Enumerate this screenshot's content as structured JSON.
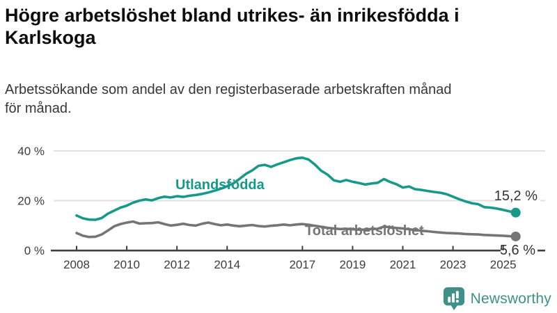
{
  "header": {
    "title_lines": [
      "Högre arbetslöshet bland utrikes- än inrikesfödda i",
      "Karlskoga"
    ],
    "subtitle_lines": [
      "Arbetssökande som andel av den registerbaserade arbetskraften månad",
      "för månad."
    ]
  },
  "branding": {
    "logo_text": "Newsworthy",
    "logo_color": "#3d918a",
    "logo_icon": "bar-chart-speech-bubble-icon"
  },
  "colors": {
    "foreign_born_line": "#17998a",
    "total_line": "#757575",
    "gridline": "#e0e0e0",
    "axis": "#3f3f3f",
    "tick_text": "#3c3c3c",
    "annotation_text": "#333333"
  },
  "chart_data": {
    "type": "line",
    "title": "Högre arbetslöshet bland utrikes- än inrikesfödda i Karlskoga",
    "subtitle": "Arbetssökande som andel av den registerbaserade arbetskraften månad för månad.",
    "unit": "%",
    "x_axis": {
      "range": [
        2008.0,
        2025.6
      ],
      "tick_years": [
        2008,
        2010,
        2012,
        2014,
        2017,
        2019,
        2021,
        2023,
        2025
      ],
      "tick_labels": [
        "2008",
        "2010",
        "2012",
        "2014",
        "2017",
        "2019",
        "2021",
        "2023",
        "2025"
      ]
    },
    "y_axis": {
      "range": [
        0,
        42
      ],
      "ticks": [
        0,
        20,
        40
      ],
      "tick_labels": [
        "0 %",
        "20 %",
        "40 %"
      ],
      "grid": true
    },
    "legend_position": "inline-labels",
    "series": [
      {
        "name": "Utlandsfödda",
        "color": "#17998a",
        "end_value": 15.2,
        "end_label": "15,2 %",
        "points": [
          [
            2008.0,
            14.0
          ],
          [
            2008.25,
            12.9
          ],
          [
            2008.5,
            12.4
          ],
          [
            2008.75,
            12.3
          ],
          [
            2009.0,
            13.0
          ],
          [
            2009.25,
            14.8
          ],
          [
            2009.5,
            16.0
          ],
          [
            2009.75,
            17.2
          ],
          [
            2010.0,
            18.0
          ],
          [
            2010.25,
            19.2
          ],
          [
            2010.5,
            20.0
          ],
          [
            2010.75,
            20.5
          ],
          [
            2011.0,
            20.1
          ],
          [
            2011.25,
            21.0
          ],
          [
            2011.5,
            21.6
          ],
          [
            2011.75,
            21.3
          ],
          [
            2012.0,
            21.8
          ],
          [
            2012.25,
            21.5
          ],
          [
            2012.5,
            22.0
          ],
          [
            2012.75,
            22.3
          ],
          [
            2013.0,
            22.7
          ],
          [
            2013.25,
            23.3
          ],
          [
            2013.5,
            24.0
          ],
          [
            2013.75,
            24.8
          ],
          [
            2014.0,
            25.8
          ],
          [
            2014.25,
            27.0
          ],
          [
            2014.5,
            28.8
          ],
          [
            2014.75,
            30.8
          ],
          [
            2015.0,
            32.2
          ],
          [
            2015.25,
            34.0
          ],
          [
            2015.5,
            34.4
          ],
          [
            2015.75,
            33.6
          ],
          [
            2016.0,
            34.6
          ],
          [
            2016.25,
            35.4
          ],
          [
            2016.5,
            36.3
          ],
          [
            2016.75,
            37.0
          ],
          [
            2017.0,
            37.3
          ],
          [
            2017.25,
            36.5
          ],
          [
            2017.5,
            34.5
          ],
          [
            2017.75,
            32.0
          ],
          [
            2018.0,
            30.5
          ],
          [
            2018.25,
            28.2
          ],
          [
            2018.5,
            27.6
          ],
          [
            2018.75,
            28.3
          ],
          [
            2019.0,
            27.6
          ],
          [
            2019.25,
            27.1
          ],
          [
            2019.5,
            26.5
          ],
          [
            2019.75,
            26.9
          ],
          [
            2020.0,
            27.2
          ],
          [
            2020.25,
            28.7
          ],
          [
            2020.5,
            27.5
          ],
          [
            2020.75,
            26.6
          ],
          [
            2021.0,
            25.3
          ],
          [
            2021.25,
            25.7
          ],
          [
            2021.5,
            24.6
          ],
          [
            2021.75,
            24.3
          ],
          [
            2022.0,
            23.9
          ],
          [
            2022.25,
            23.5
          ],
          [
            2022.5,
            23.2
          ],
          [
            2022.75,
            22.6
          ],
          [
            2023.0,
            21.6
          ],
          [
            2023.25,
            20.6
          ],
          [
            2023.5,
            19.7
          ],
          [
            2023.75,
            19.0
          ],
          [
            2024.0,
            18.6
          ],
          [
            2024.25,
            17.4
          ],
          [
            2024.5,
            17.2
          ],
          [
            2024.75,
            16.8
          ],
          [
            2025.0,
            16.3
          ],
          [
            2025.25,
            15.7
          ],
          [
            2025.5,
            15.2
          ]
        ]
      },
      {
        "name": "Total arbetslöshet",
        "color": "#757575",
        "end_value": 5.6,
        "end_label": "5,6 %",
        "points": [
          [
            2008.0,
            7.0
          ],
          [
            2008.25,
            5.9
          ],
          [
            2008.5,
            5.4
          ],
          [
            2008.75,
            5.5
          ],
          [
            2009.0,
            6.4
          ],
          [
            2009.25,
            8.0
          ],
          [
            2009.5,
            9.7
          ],
          [
            2009.75,
            10.6
          ],
          [
            2010.0,
            11.2
          ],
          [
            2010.25,
            11.6
          ],
          [
            2010.5,
            10.8
          ],
          [
            2010.75,
            10.9
          ],
          [
            2011.0,
            11.0
          ],
          [
            2011.25,
            11.3
          ],
          [
            2011.5,
            10.6
          ],
          [
            2011.75,
            10.0
          ],
          [
            2012.0,
            10.3
          ],
          [
            2012.25,
            10.7
          ],
          [
            2012.5,
            10.2
          ],
          [
            2012.75,
            10.0
          ],
          [
            2013.0,
            10.7
          ],
          [
            2013.25,
            11.2
          ],
          [
            2013.5,
            10.6
          ],
          [
            2013.75,
            10.1
          ],
          [
            2014.0,
            10.4
          ],
          [
            2014.25,
            10.0
          ],
          [
            2014.5,
            9.7
          ],
          [
            2014.75,
            10.0
          ],
          [
            2015.0,
            10.2
          ],
          [
            2015.25,
            9.8
          ],
          [
            2015.5,
            9.6
          ],
          [
            2015.75,
            9.9
          ],
          [
            2016.0,
            10.1
          ],
          [
            2016.25,
            10.4
          ],
          [
            2016.5,
            10.1
          ],
          [
            2016.75,
            10.4
          ],
          [
            2017.0,
            10.6
          ],
          [
            2017.25,
            10.3
          ],
          [
            2017.5,
            9.9
          ],
          [
            2017.75,
            9.5
          ],
          [
            2018.0,
            9.1
          ],
          [
            2018.25,
            8.8
          ],
          [
            2018.5,
            8.6
          ],
          [
            2018.75,
            8.7
          ],
          [
            2019.0,
            8.5
          ],
          [
            2019.25,
            8.3
          ],
          [
            2019.5,
            8.4
          ],
          [
            2019.75,
            8.6
          ],
          [
            2020.0,
            8.7
          ],
          [
            2020.25,
            9.6
          ],
          [
            2020.5,
            9.3
          ],
          [
            2020.75,
            9.0
          ],
          [
            2021.0,
            8.8
          ],
          [
            2021.25,
            8.5
          ],
          [
            2021.5,
            8.2
          ],
          [
            2021.75,
            7.9
          ],
          [
            2022.0,
            7.7
          ],
          [
            2022.25,
            7.4
          ],
          [
            2022.5,
            7.2
          ],
          [
            2022.75,
            7.0
          ],
          [
            2023.0,
            6.9
          ],
          [
            2023.25,
            6.8
          ],
          [
            2023.5,
            6.6
          ],
          [
            2023.75,
            6.5
          ],
          [
            2024.0,
            6.4
          ],
          [
            2024.25,
            6.2
          ],
          [
            2024.5,
            6.1
          ],
          [
            2024.75,
            6.0
          ],
          [
            2025.0,
            5.9
          ],
          [
            2025.25,
            5.7
          ],
          [
            2025.5,
            5.6
          ]
        ]
      }
    ]
  }
}
